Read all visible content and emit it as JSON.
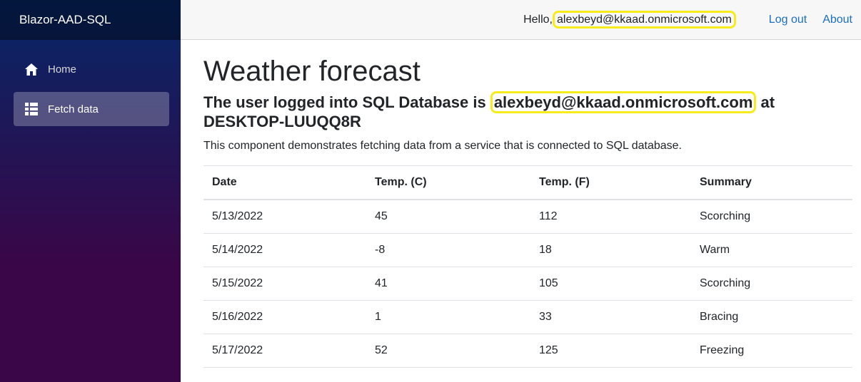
{
  "brand": "Blazor-AAD-SQL",
  "nav": [
    {
      "label": "Home",
      "icon": "home-icon"
    },
    {
      "label": "Fetch data",
      "icon": "list-icon"
    }
  ],
  "topbar": {
    "hello_prefix": "Hello,",
    "user_email": "alexbeyd@kkaad.onmicrosoft.com",
    "logout": "Log out",
    "about": "About"
  },
  "page": {
    "title": "Weather forecast",
    "subtitle_prefix": "The user logged into SQL Database is",
    "subtitle_user": "alexbeyd@kkaad.onmicrosoft.com",
    "subtitle_at": "at",
    "subtitle_host": "DESKTOP-LUUQQ8R",
    "description": "This component demonstrates fetching data from a service that is connected to SQL database."
  },
  "table": {
    "headers": [
      "Date",
      "Temp. (C)",
      "Temp. (F)",
      "Summary"
    ],
    "rows": [
      [
        "5/13/2022",
        "45",
        "112",
        "Scorching"
      ],
      [
        "5/14/2022",
        "-8",
        "18",
        "Warm"
      ],
      [
        "5/15/2022",
        "41",
        "105",
        "Scorching"
      ],
      [
        "5/16/2022",
        "1",
        "33",
        "Bracing"
      ],
      [
        "5/17/2022",
        "52",
        "125",
        "Freezing"
      ]
    ]
  },
  "colors": {
    "highlight": "#f5ec1a",
    "link": "#1b6ec2",
    "sidebar_top": "#052767",
    "sidebar_bottom": "#3a0647"
  }
}
